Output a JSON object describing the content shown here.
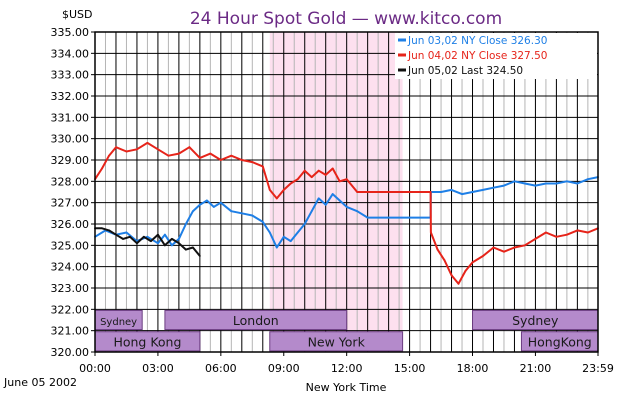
{
  "chart_data": {
    "type": "line",
    "title": "24 Hour Spot Gold — www.kitco.com",
    "y_unit_label": "$USD",
    "xlabel": "New York Time",
    "date_label": "June 05 2002",
    "ylim": [
      320.0,
      335.0
    ],
    "xlim": [
      "00:00",
      "23:59"
    ],
    "y_ticks": [
      "320.00",
      "321.00",
      "322.00",
      "323.00",
      "324.00",
      "325.00",
      "326.00",
      "327.00",
      "328.00",
      "329.00",
      "330.00",
      "331.00",
      "332.00",
      "333.00",
      "334.00",
      "335.00"
    ],
    "x_ticks": [
      "00:00",
      "03:00",
      "06:00",
      "09:00",
      "12:00",
      "15:00",
      "18:00",
      "21:00",
      "23:59"
    ],
    "grid": true,
    "legend_position": "top-right",
    "highlight_band": {
      "start": "08:20",
      "end": "14:40",
      "color": "#fde0ef"
    },
    "series": [
      {
        "name": "Jun 03,02",
        "legend_label": "Jun 03,02  NY Close  326.30",
        "color": "#1e7fe6",
        "x": [
          "00:00",
          "00:30",
          "01:00",
          "01:30",
          "02:00",
          "02:30",
          "03:00",
          "03:20",
          "03:40",
          "04:00",
          "04:20",
          "04:40",
          "05:00",
          "05:20",
          "05:40",
          "06:00",
          "06:30",
          "07:00",
          "07:30",
          "08:00",
          "08:20",
          "08:40",
          "09:00",
          "09:20",
          "09:40",
          "10:00",
          "10:20",
          "10:40",
          "11:00",
          "11:20",
          "11:40",
          "12:00",
          "12:30",
          "13:00",
          "14:00",
          "15:00",
          "16:00",
          "16:01",
          "16:30",
          "17:00",
          "17:30",
          "18:00",
          "18:30",
          "19:00",
          "19:30",
          "20:00",
          "20:30",
          "21:00",
          "21:30",
          "22:00",
          "22:30",
          "23:00",
          "23:30",
          "23:59"
        ],
        "y": [
          325.4,
          325.7,
          325.5,
          325.6,
          325.2,
          325.4,
          325.1,
          325.5,
          325.0,
          325.3,
          326.0,
          326.6,
          326.9,
          327.1,
          326.8,
          327.0,
          326.6,
          326.5,
          326.4,
          326.1,
          325.6,
          324.9,
          325.4,
          325.2,
          325.6,
          326.0,
          326.6,
          327.2,
          326.9,
          327.4,
          327.1,
          326.8,
          326.6,
          326.3,
          326.3,
          326.3,
          326.3,
          327.5,
          327.5,
          327.6,
          327.4,
          327.5,
          327.6,
          327.7,
          327.8,
          328.0,
          327.9,
          327.8,
          327.9,
          327.9,
          328.0,
          327.9,
          328.1,
          328.2
        ]
      },
      {
        "name": "Jun 04,02",
        "legend_label": "Jun 04,02  NY Close  327.50",
        "color": "#e6241a",
        "x": [
          "00:00",
          "00:20",
          "00:40",
          "01:00",
          "01:30",
          "02:00",
          "02:30",
          "03:00",
          "03:30",
          "04:00",
          "04:30",
          "05:00",
          "05:30",
          "06:00",
          "06:30",
          "07:00",
          "07:30",
          "08:00",
          "08:20",
          "08:40",
          "09:00",
          "09:20",
          "09:40",
          "10:00",
          "10:20",
          "10:40",
          "11:00",
          "11:20",
          "11:40",
          "12:00",
          "12:30",
          "13:00",
          "14:00",
          "15:00",
          "16:00",
          "16:01",
          "16:20",
          "16:40",
          "17:00",
          "17:20",
          "17:40",
          "18:00",
          "18:30",
          "19:00",
          "19:30",
          "20:00",
          "20:30",
          "21:00",
          "21:30",
          "22:00",
          "22:30",
          "23:00",
          "23:30",
          "23:59"
        ],
        "y": [
          328.1,
          328.6,
          329.2,
          329.6,
          329.4,
          329.5,
          329.8,
          329.5,
          329.2,
          329.3,
          329.6,
          329.1,
          329.3,
          329.0,
          329.2,
          329.0,
          328.9,
          328.7,
          327.6,
          327.2,
          327.6,
          327.9,
          328.1,
          328.5,
          328.2,
          328.5,
          328.3,
          328.6,
          328.0,
          328.1,
          327.5,
          327.5,
          327.5,
          327.5,
          327.5,
          325.6,
          324.8,
          324.3,
          323.6,
          323.2,
          323.8,
          324.2,
          324.5,
          324.9,
          324.7,
          324.9,
          325.0,
          325.3,
          325.6,
          325.4,
          325.5,
          325.7,
          325.6,
          325.8
        ]
      },
      {
        "name": "Jun 05,02",
        "legend_label": "Jun 05,02  Last  324.50",
        "color": "#111111",
        "x": [
          "00:00",
          "00:20",
          "00:40",
          "01:00",
          "01:20",
          "01:40",
          "02:00",
          "02:20",
          "02:40",
          "03:00",
          "03:20",
          "03:40",
          "04:00",
          "04:20",
          "04:40",
          "05:00"
        ],
        "y": [
          325.8,
          325.8,
          325.7,
          325.5,
          325.3,
          325.4,
          325.1,
          325.4,
          325.2,
          325.5,
          325.0,
          325.3,
          325.1,
          324.8,
          324.9,
          324.5
        ]
      }
    ],
    "sessions_top": [
      {
        "label": "Sydney",
        "start": "00:00",
        "end": "02:15"
      },
      {
        "label": "London",
        "start": "03:20",
        "end": "12:00"
      },
      {
        "label": "Sydney",
        "start": "18:00",
        "end": "23:59"
      }
    ],
    "sessions_bottom": [
      {
        "label": "Hong Kong",
        "start": "00:00",
        "end": "05:00"
      },
      {
        "label": "New York",
        "start": "08:20",
        "end": "14:40"
      },
      {
        "label": "HongKong",
        "start": "20:20",
        "end": "23:59"
      }
    ],
    "session_color": "#b48acb"
  }
}
